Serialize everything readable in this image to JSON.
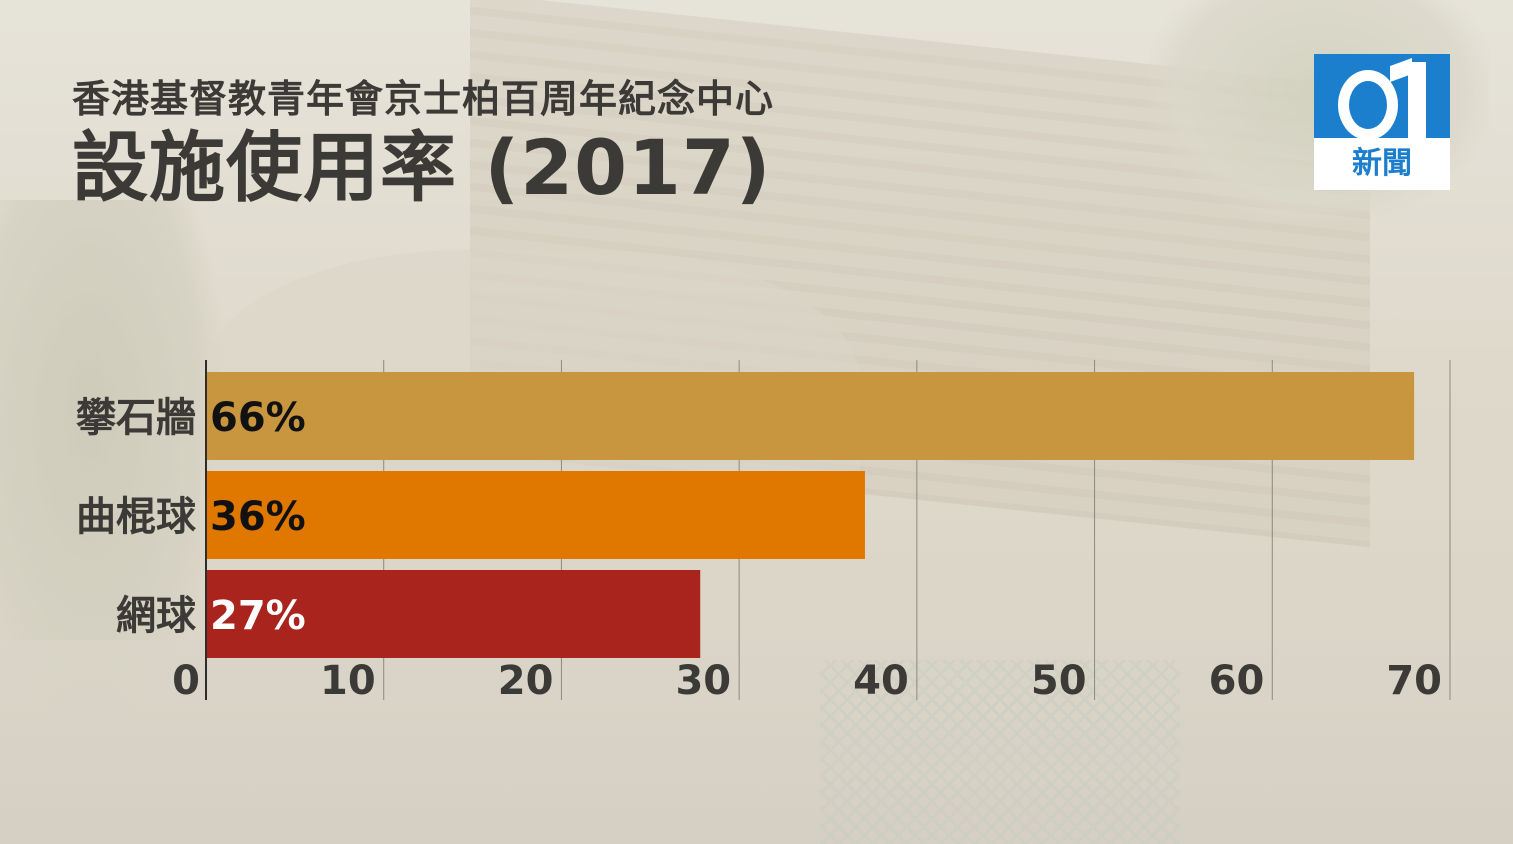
{
  "header": {
    "subtitle": "香港基督教青年會京士柏百周年紀念中心",
    "title": "設施使用率 (2017)"
  },
  "logo": {
    "word": "新聞"
  },
  "chart_data": {
    "type": "bar",
    "orientation": "horizontal",
    "categories": [
      "攀石牆",
      "曲棍球",
      "網球"
    ],
    "values": [
      66,
      36,
      27
    ],
    "value_labels": [
      "66%",
      "36%",
      "27%"
    ],
    "colors": [
      "#c99640",
      "#e07800",
      "#a8241c"
    ],
    "label_colors": [
      "#111111",
      "#111111",
      "#ffffff"
    ],
    "xlim": [
      0,
      70
    ],
    "xticks": [
      0,
      10,
      20,
      30,
      40,
      50,
      60,
      70
    ],
    "grid": true,
    "legend": "none"
  }
}
